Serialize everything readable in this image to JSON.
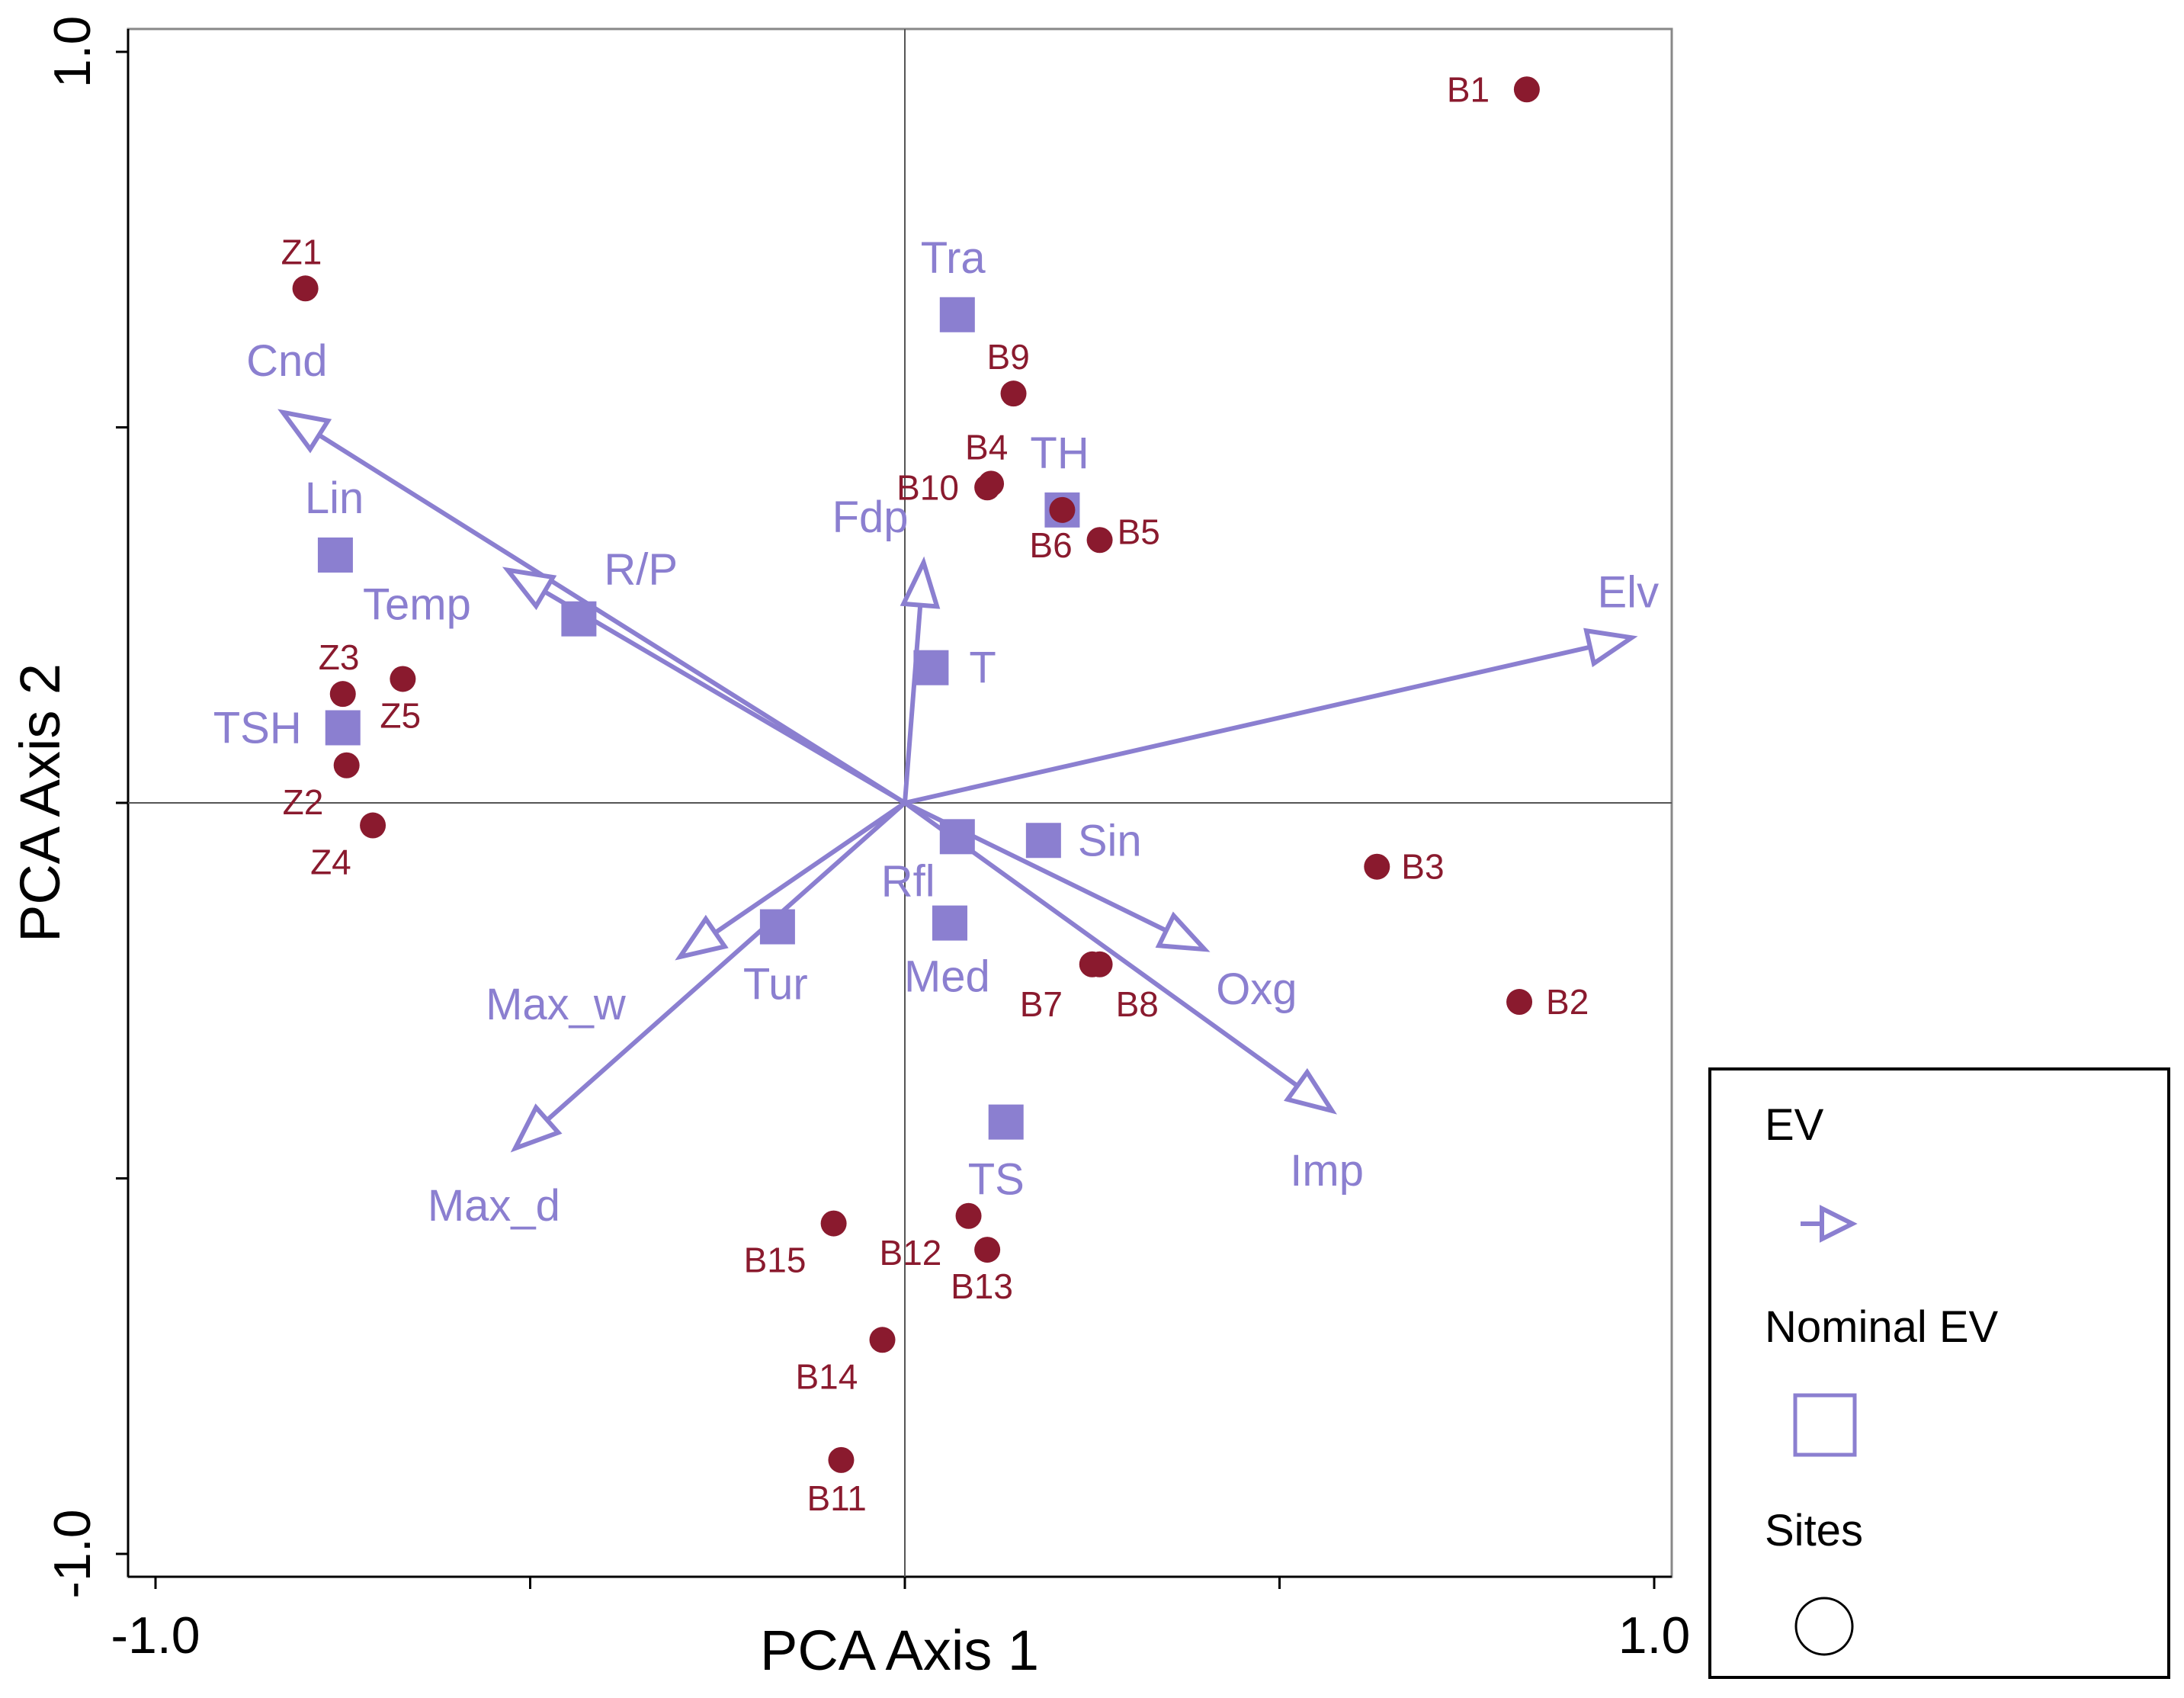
{
  "chart_data": {
    "type": "scatter",
    "subtype": "pca-biplot",
    "xlabel": "PCA Axis 1",
    "ylabel": "PCA Axis 2",
    "xlim": [
      -1.0,
      1.0
    ],
    "ylim": [
      -1.0,
      1.0
    ],
    "x_ticks": [
      -1.0,
      -0.5,
      0.0,
      0.5,
      1.0
    ],
    "y_ticks": [
      -1.0,
      -0.5,
      0.0,
      0.5,
      1.0
    ],
    "x_tick_labels": [
      "-1.0",
      "",
      "",
      "",
      "1.0"
    ],
    "y_tick_labels": [
      "-1.0",
      "",
      "",
      "",
      "1.0"
    ],
    "reference_lines": {
      "x": 0,
      "y": 0
    },
    "colors": {
      "ev": "#8b7fd0",
      "sites": "#8a1a2e",
      "axes": "#000000",
      "reference": "#555555"
    },
    "vectors": [
      {
        "name": "Cnd",
        "x": -0.83,
        "y": 0.52
      },
      {
        "name": "Temp",
        "x": -0.53,
        "y": 0.31
      },
      {
        "name": "Fdp",
        "x": 0.025,
        "y": 0.32
      },
      {
        "name": "Elv",
        "x": 0.97,
        "y": 0.22
      },
      {
        "name": "Oxg",
        "x": 0.4,
        "y": -0.195
      },
      {
        "name": "Imp",
        "x": 0.57,
        "y": -0.41
      },
      {
        "name": "Max_w",
        "x": -0.3,
        "y": -0.205
      },
      {
        "name": "Max_d",
        "x": -0.52,
        "y": -0.46
      }
    ],
    "nominal": [
      {
        "name": "Tra",
        "x": 0.07,
        "y": 0.65
      },
      {
        "name": "TH",
        "x": 0.21,
        "y": 0.39
      },
      {
        "name": "Lin",
        "x": -0.76,
        "y": 0.33
      },
      {
        "name": "R/P",
        "x": -0.435,
        "y": 0.245
      },
      {
        "name": "T",
        "x": 0.035,
        "y": 0.18
      },
      {
        "name": "TSH",
        "x": -0.75,
        "y": 0.1
      },
      {
        "name": "Sin",
        "x": 0.185,
        "y": -0.05
      },
      {
        "name": "Rfl",
        "x": 0.07,
        "y": -0.045
      },
      {
        "name": "Tur",
        "x": -0.17,
        "y": -0.165
      },
      {
        "name": "Med",
        "x": 0.06,
        "y": -0.16
      },
      {
        "name": "TS",
        "x": 0.135,
        "y": -0.425
      }
    ],
    "sites": [
      {
        "name": "B1",
        "x": 0.83,
        "y": 0.95
      },
      {
        "name": "Z1",
        "x": -0.8,
        "y": 0.685
      },
      {
        "name": "B9",
        "x": 0.145,
        "y": 0.545
      },
      {
        "name": "B4",
        "x": 0.115,
        "y": 0.425
      },
      {
        "name": "B10",
        "x": 0.11,
        "y": 0.42
      },
      {
        "name": "B6",
        "x": 0.21,
        "y": 0.39
      },
      {
        "name": "B5",
        "x": 0.26,
        "y": 0.35
      },
      {
        "name": "Z3",
        "x": -0.75,
        "y": 0.145
      },
      {
        "name": "Z5",
        "x": -0.67,
        "y": 0.165
      },
      {
        "name": "Z2",
        "x": -0.745,
        "y": 0.05
      },
      {
        "name": "Z4",
        "x": -0.71,
        "y": -0.03
      },
      {
        "name": "B3",
        "x": 0.63,
        "y": -0.085
      },
      {
        "name": "B2",
        "x": 0.82,
        "y": -0.265
      },
      {
        "name": "B7",
        "x": 0.25,
        "y": -0.215
      },
      {
        "name": "B8",
        "x": 0.26,
        "y": -0.215
      },
      {
        "name": "B15",
        "x": -0.095,
        "y": -0.56
      },
      {
        "name": "B12",
        "x": 0.085,
        "y": -0.55
      },
      {
        "name": "B13",
        "x": 0.11,
        "y": -0.595
      },
      {
        "name": "B14",
        "x": -0.03,
        "y": -0.715
      },
      {
        "name": "B11",
        "x": -0.085,
        "y": -0.875
      }
    ],
    "legend": {
      "position": "right-bottom",
      "entries": [
        {
          "label": "EV",
          "marker": "arrow"
        },
        {
          "label": "Nominal EV",
          "marker": "square"
        },
        {
          "label": "Sites",
          "marker": "circle"
        }
      ]
    }
  }
}
